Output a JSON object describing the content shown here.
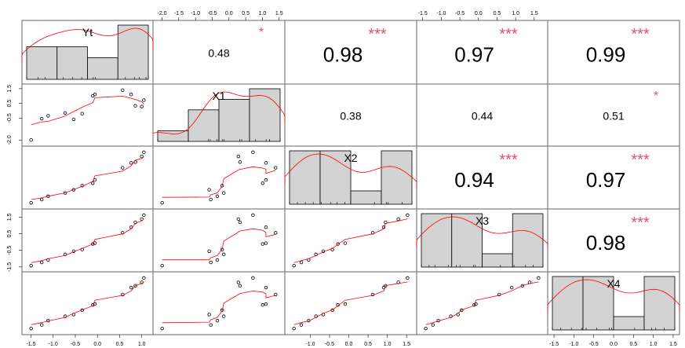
{
  "chart_data": {
    "type": "scatter-matrix",
    "title": "",
    "variables": [
      "Yt",
      "X1",
      "X2",
      "X3",
      "X4"
    ],
    "colors": {
      "smooth": "#ff0000",
      "stars": "#df536b",
      "hist_fill": "#d3d3d3",
      "points": "#000000"
    },
    "observations": {
      "Yt": [
        -1.55,
        -1.3,
        -1.15,
        -0.75,
        -0.55,
        -0.35,
        -0.1,
        -0.05,
        0.6,
        0.8,
        0.9,
        1.05,
        1.1
      ],
      "X1": [
        -2.2,
        -0.7,
        -0.5,
        -0.3,
        -0.75,
        -0.35,
        0.9,
        1.0,
        1.3,
        1.0,
        0.2,
        0.15,
        0.6
      ],
      "X2": [
        -1.5,
        -1.3,
        -1.1,
        -0.9,
        -0.7,
        -0.45,
        -0.3,
        -0.1,
        0.65,
        0.95,
        1.0,
        1.35,
        1.6
      ],
      "X3": [
        -1.45,
        -1.25,
        -1.1,
        -0.75,
        -0.55,
        -0.45,
        -0.1,
        -0.05,
        0.6,
        0.95,
        1.25,
        1.45,
        1.7
      ],
      "X4": [
        -1.4,
        -1.2,
        -0.95,
        -0.7,
        -0.6,
        -0.35,
        -0.05,
        0.0,
        0.55,
        0.95,
        1.05,
        1.25,
        1.5
      ]
    },
    "correlations": [
      {
        "row": 0,
        "col": 1,
        "r": "0.48",
        "stars": "*"
      },
      {
        "row": 0,
        "col": 2,
        "r": "0.98",
        "stars": "***"
      },
      {
        "row": 0,
        "col": 3,
        "r": "0.97",
        "stars": "***"
      },
      {
        "row": 0,
        "col": 4,
        "r": "0.99",
        "stars": "***"
      },
      {
        "row": 1,
        "col": 2,
        "r": "0.38",
        "stars": ""
      },
      {
        "row": 1,
        "col": 3,
        "r": "0.44",
        "stars": ""
      },
      {
        "row": 1,
        "col": 4,
        "r": "0.51",
        "stars": "*"
      },
      {
        "row": 2,
        "col": 3,
        "r": "0.94",
        "stars": "***"
      },
      {
        "row": 2,
        "col": 4,
        "r": "0.97",
        "stars": "***"
      },
      {
        "row": 3,
        "col": 4,
        "r": "0.98",
        "stars": "***"
      }
    ],
    "axes": {
      "top": [
        {
          "col": 1,
          "ticks": [
            "-2.0",
            "-1.5",
            "-1.0",
            "-0.5",
            "0.0",
            "0.5",
            "1.0",
            "1.5"
          ],
          "range": [
            -2.2,
            1.6
          ]
        },
        {
          "col": 3,
          "ticks": [
            "-1.5",
            "-1.0",
            "-0.5",
            "0.0",
            "0.5",
            "1.0",
            "1.5"
          ],
          "range": [
            -1.6,
            1.8
          ]
        }
      ],
      "bottom": [
        {
          "col": 0,
          "ticks": [
            "-1.5",
            "-1.0",
            "-0.5",
            "0.0",
            "0.5",
            "1.0"
          ],
          "range": [
            -1.65,
            1.2
          ]
        },
        {
          "col": 2,
          "ticks": [
            "-1.0",
            "-0.5",
            "0.0",
            "0.5",
            "1.0",
            "1.5"
          ],
          "range": [
            -1.6,
            1.7
          ]
        },
        {
          "col": 4,
          "ticks": [
            "-1.5",
            "-1.0",
            "-0.5",
            "0.0",
            "0.5",
            "1.0",
            "1.5"
          ],
          "range": [
            -1.6,
            1.6
          ]
        }
      ],
      "left": [
        {
          "row": 1,
          "ticks": [
            "1.5",
            "0.5",
            "-0.5",
            "-2.0"
          ],
          "range": [
            -2.2,
            1.6
          ]
        },
        {
          "row": 3,
          "ticks": [
            "1.5",
            "0.5",
            "-0.5",
            "-1.5"
          ],
          "range": [
            -1.6,
            1.8
          ]
        }
      ]
    }
  }
}
